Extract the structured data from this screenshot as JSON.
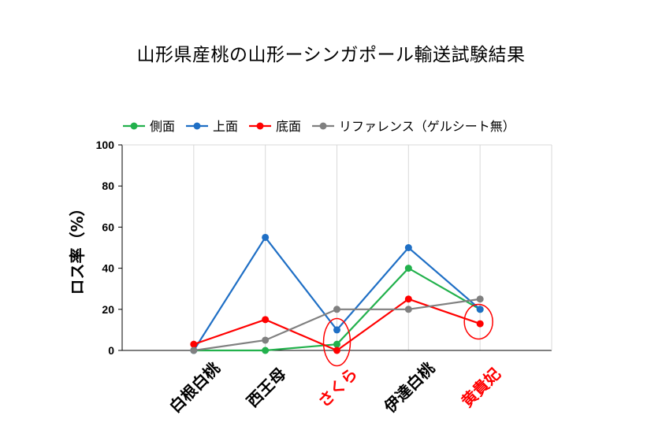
{
  "chart_data": {
    "type": "line",
    "title": "山形県産桃の山形ーシンガポール輸送試験結果",
    "ylabel": "ロス率（%）",
    "xlabel": "",
    "ylim": [
      0,
      100
    ],
    "yticks": [
      "0",
      "20",
      "40",
      "60",
      "80",
      "100"
    ],
    "grid": "vertical",
    "legend_position": "top",
    "categories": [
      "白根白桃",
      "西王母",
      "さくら",
      "伊達白桃",
      "黄貴妃"
    ],
    "category_colors": [
      "#000000",
      "#000000",
      "#ff0000",
      "#000000",
      "#ff0000"
    ],
    "series": [
      {
        "name": "側面",
        "color": "#22b14c",
        "values": [
          0,
          0,
          3,
          40,
          20
        ]
      },
      {
        "name": "上面",
        "color": "#1f6fc5",
        "values": [
          0,
          55,
          10,
          50,
          20
        ]
      },
      {
        "name": "底面",
        "color": "#ff0000",
        "values": [
          3,
          15,
          0,
          25,
          13
        ]
      },
      {
        "name": "リファレンス（ゲルシート無）",
        "color": "#808080",
        "values": [
          0,
          5,
          20,
          20,
          25
        ]
      }
    ],
    "highlights": [
      {
        "category": "さくら",
        "color": "#ff0000"
      },
      {
        "category": "黄貴妃",
        "color": "#ff0000"
      }
    ]
  }
}
